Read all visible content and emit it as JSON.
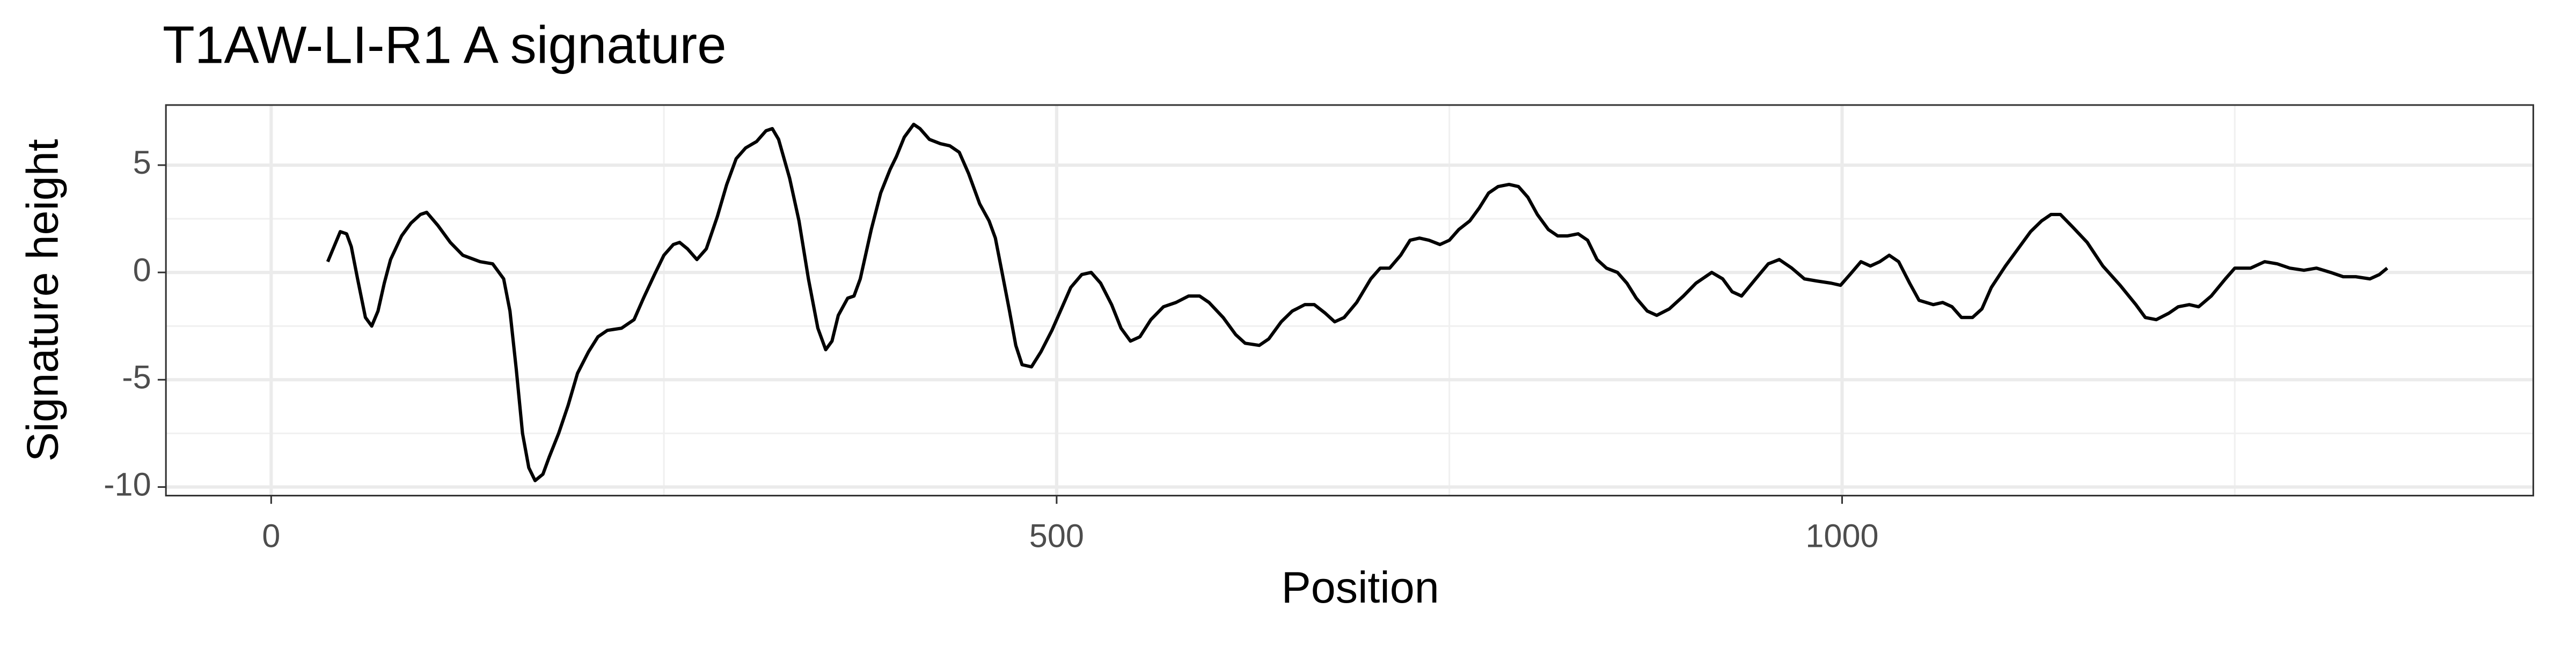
{
  "chart_data": {
    "type": "line",
    "title": "T1AW-LI-R1 A signature",
    "x_label": "Position",
    "y_label": "Signature height",
    "xlim": [
      -67,
      1440
    ],
    "ylim": [
      -10.4,
      7.8
    ],
    "xticks": [
      0,
      500,
      1000
    ],
    "yticks": [
      -10,
      -5,
      0,
      5
    ],
    "xminor": [
      250,
      750,
      1250
    ],
    "yminor": [
      -7.5,
      -2.5,
      2.5
    ],
    "grid": true,
    "series": [
      {
        "color": "#000000",
        "x": [
          36,
          40,
          44,
          48,
          51,
          55,
          60,
          64,
          68,
          72,
          76,
          83,
          89,
          95,
          99,
          106,
          114,
          122,
          133,
          141,
          148,
          152,
          156,
          160,
          164,
          168,
          173,
          177,
          183,
          189,
          195,
          202,
          208,
          214,
          223,
          231,
          237,
          244,
          250,
          256,
          260,
          265,
          271,
          277,
          284,
          290,
          296,
          302,
          309,
          315,
          319,
          323,
          330,
          336,
          342,
          348,
          353,
          357,
          361,
          367,
          371,
          375,
          382,
          388,
          394,
          398,
          403,
          409,
          413,
          419,
          426,
          432,
          438,
          444,
          451,
          457,
          461,
          465,
          470,
          474,
          478,
          484,
          490,
          497,
          503,
          509,
          516,
          522,
          528,
          535,
          541,
          547,
          553,
          560,
          568,
          576,
          584,
          591,
          597,
          606,
          614,
          620,
          629,
          635,
          643,
          650,
          658,
          664,
          671,
          677,
          683,
          691,
          700,
          706,
          712,
          719,
          725,
          731,
          737,
          744,
          750,
          756,
          763,
          769,
          775,
          781,
          788,
          794,
          800,
          806,
          813,
          819,
          825,
          832,
          838,
          844,
          850,
          857,
          863,
          869,
          876,
          882,
          890,
          899,
          907,
          913,
          917,
          924,
          930,
          936,
          945,
          953,
          960,
          968,
          976,
          984,
          993,
          999,
          1005,
          1012,
          1018,
          1024,
          1030,
          1036,
          1043,
          1049,
          1058,
          1064,
          1070,
          1076,
          1083,
          1089,
          1095,
          1104,
          1112,
          1120,
          1127,
          1133,
          1139,
          1147,
          1156,
          1166,
          1177,
          1187,
          1193,
          1200,
          1208,
          1214,
          1221,
          1227,
          1235,
          1244,
          1250,
          1260,
          1269,
          1277,
          1285,
          1294,
          1302,
          1311,
          1319,
          1327,
          1336,
          1342,
          1347
        ],
        "values": [
          0.5,
          1.2,
          1.9,
          1.8,
          1.2,
          -0.3,
          -2.1,
          -2.5,
          -1.8,
          -0.5,
          0.6,
          1.7,
          2.3,
          2.7,
          2.8,
          2.2,
          1.4,
          0.8,
          0.5,
          0.4,
          -0.3,
          -1.8,
          -4.5,
          -7.5,
          -9.1,
          -9.7,
          -9.4,
          -8.6,
          -7.5,
          -6.2,
          -4.7,
          -3.7,
          -3.0,
          -2.7,
          -2.6,
          -2.2,
          -1.2,
          -0.1,
          0.8,
          1.3,
          1.4,
          1.1,
          0.6,
          1.1,
          2.6,
          4.1,
          5.3,
          5.8,
          6.1,
          6.6,
          6.7,
          6.2,
          4.4,
          2.4,
          -0.3,
          -2.6,
          -3.6,
          -3.2,
          -2.0,
          -1.2,
          -1.1,
          -0.3,
          2.0,
          3.7,
          4.8,
          5.4,
          6.3,
          6.9,
          6.7,
          6.2,
          6.0,
          5.9,
          5.6,
          4.6,
          3.2,
          2.4,
          1.6,
          0.1,
          -1.8,
          -3.4,
          -4.3,
          -4.4,
          -3.7,
          -2.7,
          -1.7,
          -0.7,
          -0.1,
          0,
          -0.5,
          -1.5,
          -2.6,
          -3.2,
          -3.0,
          -2.2,
          -1.6,
          -1.4,
          -1.1,
          -1.1,
          -1.4,
          -2.1,
          -2.9,
          -3.3,
          -3.4,
          -3.1,
          -2.3,
          -1.8,
          -1.5,
          -1.5,
          -1.9,
          -2.3,
          -2.1,
          -1.4,
          -0.3,
          0.2,
          0.2,
          0.8,
          1.5,
          1.6,
          1.5,
          1.3,
          1.5,
          2.0,
          2.4,
          3.0,
          3.7,
          4.0,
          4.1,
          4.0,
          3.5,
          2.7,
          2.0,
          1.7,
          1.7,
          1.8,
          1.5,
          0.6,
          0.2,
          0,
          -0.5,
          -1.2,
          -1.8,
          -2.0,
          -1.7,
          -1.1,
          -0.5,
          -0.2,
          0,
          -0.3,
          -0.9,
          -1.1,
          -0.3,
          0.4,
          0.6,
          0.2,
          -0.3,
          -0.4,
          -0.5,
          -0.6,
          -0.1,
          0.5,
          0.3,
          0.5,
          0.8,
          0.5,
          -0.5,
          -1.3,
          -1.5,
          -1.4,
          -1.6,
          -2.1,
          -2.1,
          -1.7,
          -0.7,
          0.3,
          1.1,
          1.9,
          2.4,
          2.7,
          2.7,
          2.1,
          1.4,
          0.3,
          -0.6,
          -1.5,
          -2.1,
          -2.2,
          -1.9,
          -1.6,
          -1.5,
          -1.6,
          -1.1,
          -0.3,
          0.2,
          0.2,
          0.5,
          0.4,
          0.2,
          0.1,
          0.2,
          0,
          -0.2,
          -0.2,
          -0.3,
          -0.1,
          0.2
        ]
      }
    ]
  }
}
